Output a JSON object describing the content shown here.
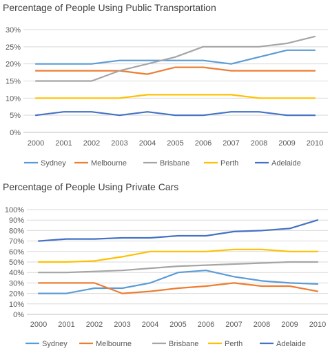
{
  "chart_data": [
    {
      "type": "line",
      "title": "Percentage of People Using Public Transportation",
      "xlabel": "",
      "ylabel": "",
      "categories": [
        "2000",
        "2001",
        "2002",
        "2003",
        "2004",
        "2005",
        "2006",
        "2007",
        "2008",
        "2009",
        "2010"
      ],
      "ylim": [
        0,
        30
      ],
      "yticks": [
        0,
        5,
        10,
        15,
        20,
        25,
        30
      ],
      "ytick_labels": [
        "0%",
        "5%",
        "10%",
        "15%",
        "20%",
        "25%",
        "30%"
      ],
      "grid": true,
      "legend": "bottom",
      "series": [
        {
          "name": "Sydney",
          "color": "#5B9BD5",
          "values": [
            20,
            20,
            20,
            21,
            21,
            21,
            21,
            20,
            22,
            24,
            24
          ]
        },
        {
          "name": "Melbourne",
          "color": "#ED7D31",
          "values": [
            18,
            18,
            18,
            18,
            17,
            19,
            19,
            18,
            18,
            18,
            18
          ]
        },
        {
          "name": "Brisbane",
          "color": "#A5A5A5",
          "values": [
            15,
            15,
            15,
            18,
            20,
            22,
            25,
            25,
            25,
            26,
            28
          ]
        },
        {
          "name": "Perth",
          "color": "#FFC000",
          "values": [
            10,
            10,
            10,
            10,
            11,
            11,
            11,
            11,
            10,
            10,
            10
          ]
        },
        {
          "name": "Adelaide",
          "color": "#4472C4",
          "values": [
            5,
            6,
            6,
            5,
            6,
            5,
            5,
            6,
            6,
            5,
            5
          ]
        }
      ]
    },
    {
      "type": "line",
      "title": "Percentage of People Using Private Cars",
      "xlabel": "",
      "ylabel": "",
      "categories": [
        "2000",
        "2001",
        "2002",
        "2003",
        "2004",
        "2005",
        "2006",
        "2007",
        "2008",
        "2009",
        "2010"
      ],
      "ylim": [
        0,
        100
      ],
      "yticks": [
        0,
        10,
        20,
        30,
        40,
        50,
        60,
        70,
        80,
        90,
        100
      ],
      "ytick_labels": [
        "0%",
        "10%",
        "20%",
        "30%",
        "40%",
        "50%",
        "60%",
        "70%",
        "80%",
        "90%",
        "100%"
      ],
      "grid": true,
      "legend": "bottom",
      "series": [
        {
          "name": "Sydney",
          "color": "#5B9BD5",
          "values": [
            20,
            20,
            25,
            25,
            30,
            40,
            42,
            36,
            32,
            30,
            29
          ]
        },
        {
          "name": "Melbourne",
          "color": "#ED7D31",
          "values": [
            30,
            30,
            30,
            20,
            22,
            25,
            27,
            30,
            27,
            27,
            22
          ]
        },
        {
          "name": "Brisbane",
          "color": "#A5A5A5",
          "values": [
            40,
            40,
            41,
            42,
            44,
            46,
            47,
            48,
            49,
            50,
            50
          ]
        },
        {
          "name": "Perth",
          "color": "#FFC000",
          "values": [
            50,
            50,
            51,
            55,
            60,
            60,
            60,
            62,
            62,
            60,
            60
          ]
        },
        {
          "name": "Adelaide",
          "color": "#4472C4",
          "values": [
            70,
            72,
            72,
            73,
            73,
            75,
            75,
            79,
            80,
            82,
            90
          ]
        }
      ]
    }
  ]
}
